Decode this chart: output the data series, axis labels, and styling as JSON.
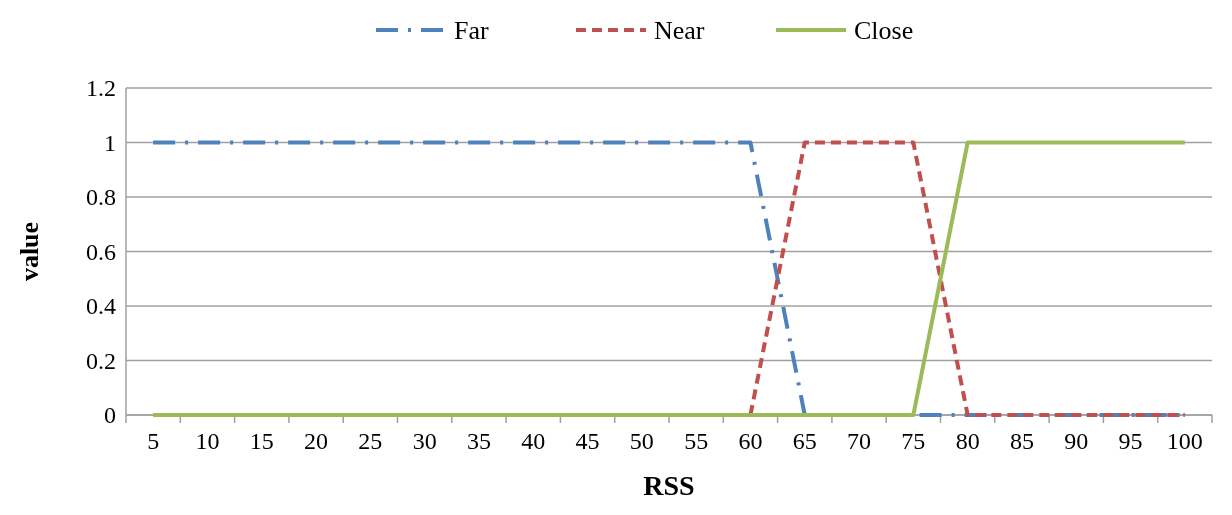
{
  "chart_data": {
    "type": "line",
    "xlabel": "RSS",
    "ylabel": "value",
    "categories": [
      "5",
      "10",
      "15",
      "20",
      "25",
      "30",
      "35",
      "40",
      "45",
      "50",
      "55",
      "60",
      "65",
      "70",
      "75",
      "80",
      "85",
      "90",
      "95",
      "100"
    ],
    "series": [
      {
        "name": "Far",
        "color": "#4f81bd",
        "line_style": "dashdot",
        "values": [
          1,
          1,
          1,
          1,
          1,
          1,
          1,
          1,
          1,
          1,
          1,
          1,
          0,
          0,
          0,
          0,
          0,
          0,
          0,
          0
        ]
      },
      {
        "name": "Near",
        "color": "#c0504d",
        "line_style": "dashed",
        "values": [
          null,
          null,
          null,
          null,
          null,
          null,
          null,
          null,
          null,
          null,
          null,
          0,
          1,
          1,
          1,
          0,
          0,
          0,
          0,
          0
        ]
      },
      {
        "name": "Close",
        "color": "#9bbb59",
        "line_style": "solid",
        "values": [
          0,
          0,
          0,
          0,
          0,
          0,
          0,
          0,
          0,
          0,
          0,
          0,
          0,
          0,
          0,
          1,
          1,
          1,
          1,
          1
        ]
      }
    ],
    "ylim": [
      0,
      1.2
    ],
    "yticks": [
      0,
      0.2,
      0.4,
      0.6,
      0.8,
      1,
      1.2
    ],
    "grid": "y",
    "legend": "top"
  }
}
